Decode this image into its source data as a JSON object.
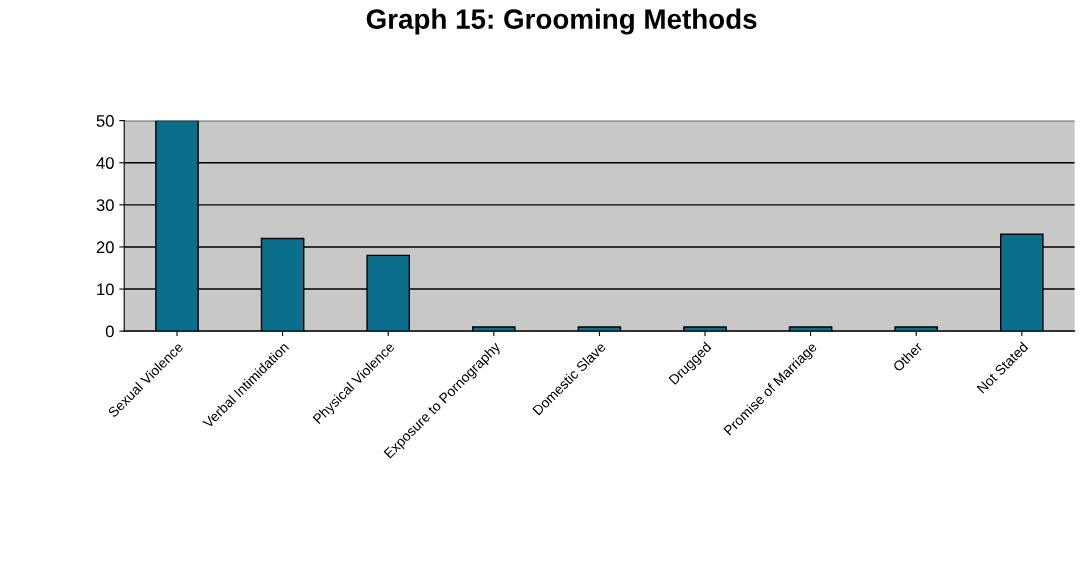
{
  "chart_data": {
    "type": "bar",
    "title": "Graph 15: Grooming Methods",
    "categories": [
      "Sexual Violence",
      "Verbal Intimidation",
      "Physical Violence",
      "Exposure to Pornography",
      "Domestic Slave",
      "Drugged",
      "Promise of Marriage",
      "Other",
      "Not Stated"
    ],
    "values": [
      50,
      22,
      18,
      1,
      1,
      1,
      1,
      1,
      23
    ],
    "color": "#0b6f8c",
    "ylim": [
      0,
      50
    ],
    "yticks": [
      0,
      10,
      20,
      30,
      40,
      50
    ],
    "grid": "y"
  }
}
